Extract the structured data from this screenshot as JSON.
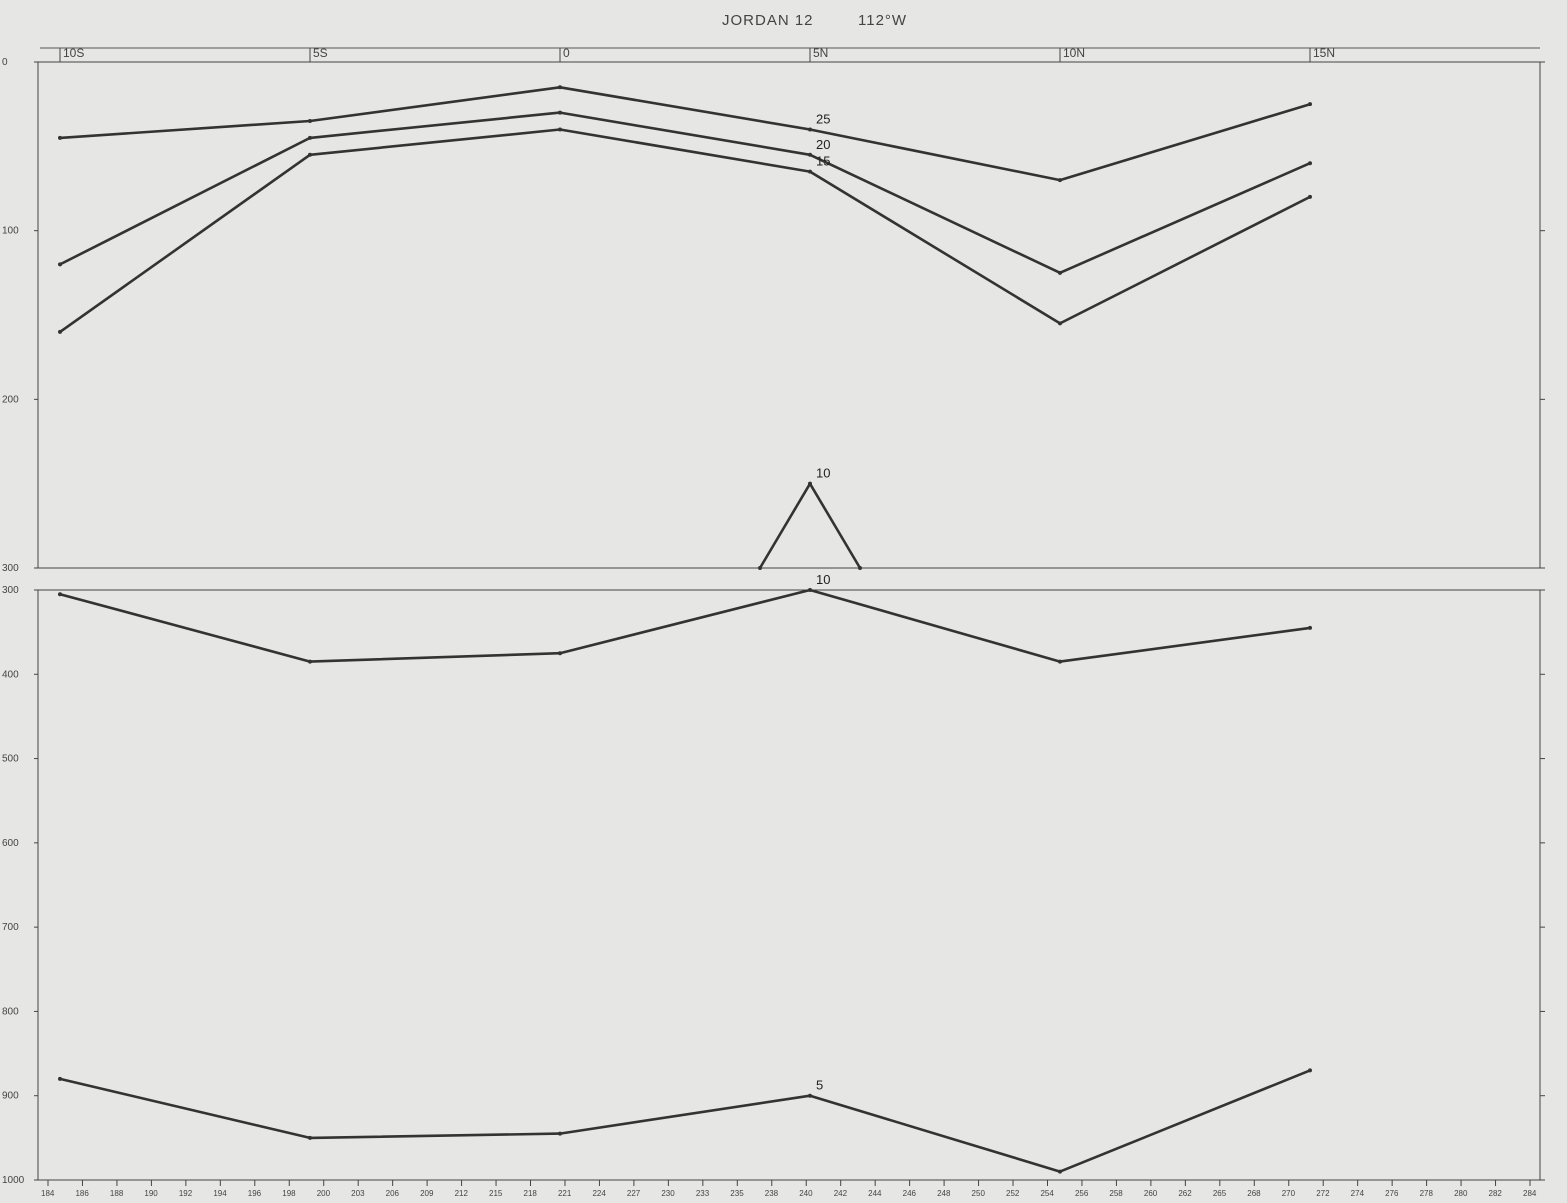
{
  "chart_data": {
    "type": "line",
    "title": "JORDAN 12",
    "subtitle": "112°W",
    "xlabel": "",
    "ylabel": "",
    "latitude_labels": [
      "10S",
      "5S",
      "0",
      "5N",
      "10N",
      "15N"
    ],
    "station_labels": [
      "184",
      "186",
      "188",
      "190",
      "192",
      "194",
      "196",
      "198",
      "200",
      "203",
      "206",
      "209",
      "212",
      "215",
      "218",
      "221",
      "224",
      "227",
      "230",
      "233",
      "235",
      "238",
      "240",
      "242",
      "244",
      "246",
      "248",
      "250",
      "252",
      "254",
      "256",
      "258",
      "260",
      "262",
      "265",
      "268",
      "270",
      "272",
      "274",
      "276",
      "278",
      "280",
      "282",
      "284"
    ],
    "upper_panel": {
      "yticks": [
        "0",
        "100",
        "200",
        "300"
      ],
      "ylim": [
        0,
        300
      ],
      "labeled_isotherms": [
        {
          "name": "25",
          "values_at_latitude": [
            [
              "10S",
              45
            ],
            [
              "5S",
              35
            ],
            [
              "0",
              15
            ],
            [
              "5N",
              40
            ],
            [
              "10N",
              70
            ],
            [
              "15N",
              25
            ]
          ]
        },
        {
          "name": "20",
          "values_at_latitude": [
            [
              "10S",
              120
            ],
            [
              "5S",
              45
            ],
            [
              "0",
              30
            ],
            [
              "5N",
              55
            ],
            [
              "10N",
              125
            ],
            [
              "15N",
              60
            ]
          ]
        },
        {
          "name": "15",
          "values_at_latitude": [
            [
              "10S",
              160
            ],
            [
              "5S",
              55
            ],
            [
              "0",
              40
            ],
            [
              "5N",
              65
            ],
            [
              "10N",
              155
            ],
            [
              "15N",
              80
            ]
          ]
        },
        {
          "name": "10",
          "values_at_latitude": [
            [
              "4N",
              300
            ],
            [
              "5N",
              250
            ],
            [
              "6N",
              300
            ]
          ]
        }
      ]
    },
    "lower_panel": {
      "yticks": [
        "300",
        "400",
        "500",
        "600",
        "700",
        "800",
        "900",
        "1000"
      ],
      "ylim": [
        300,
        1000
      ],
      "labeled_isotherms": [
        {
          "name": "10",
          "values_at_latitude": [
            [
              "10S",
              305
            ],
            [
              "5S",
              385
            ],
            [
              "0",
              375
            ],
            [
              "5N",
              300
            ],
            [
              "10N",
              385
            ],
            [
              "15N",
              345
            ]
          ]
        },
        {
          "name": "5",
          "values_at_latitude": [
            [
              "10S",
              880
            ],
            [
              "5S",
              950
            ],
            [
              "0",
              945
            ],
            [
              "5N",
              900
            ],
            [
              "10N",
              990
            ],
            [
              "15N",
              870
            ]
          ]
        }
      ]
    }
  }
}
